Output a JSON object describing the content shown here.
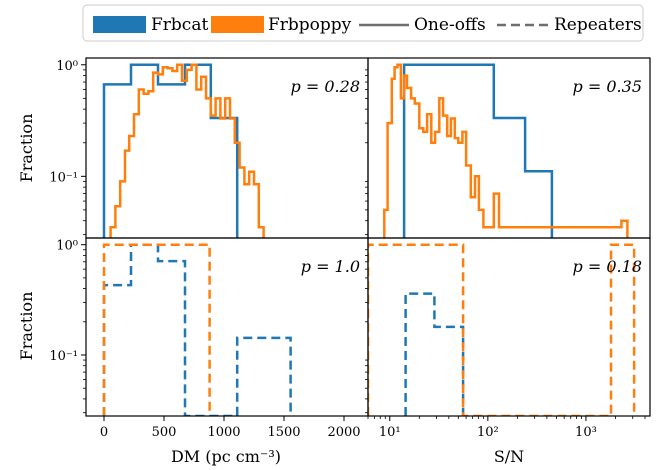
{
  "legend": {
    "entries": [
      {
        "label": "Frbcat",
        "kind": "patch",
        "color": "#1f77b4"
      },
      {
        "label": "Frbpoppy",
        "kind": "patch",
        "color": "#ff7f0e"
      },
      {
        "label": "One-offs",
        "kind": "solid-line",
        "color": "#6e6e6e"
      },
      {
        "label": "Repeaters",
        "kind": "dashed-line",
        "color": "#6e6e6e"
      }
    ]
  },
  "axes_labels": {
    "ylabel": "Fraction",
    "xlabel_dm": "DM (pc cm⁻³)",
    "xlabel_sn": "S/N"
  },
  "colors": {
    "frbcat": "#1f77b4",
    "frbpoppy": "#ff7f0e"
  },
  "chart_data": [
    {
      "type": "area",
      "panel": "top-left",
      "annotation": "p = 0.28",
      "xscale": "linear",
      "yscale": "log",
      "xlim": [
        -150,
        2200
      ],
      "ylim": [
        0.028,
        1.15
      ],
      "ylabel": "Fraction",
      "xticks": [
        0,
        500,
        1000,
        1500,
        2000
      ],
      "yticks": [
        {
          "v": 1,
          "t": "10⁰"
        },
        {
          "v": 0.1,
          "t": "10⁻¹"
        }
      ],
      "series": [
        {
          "name": "Frbcat",
          "style": "solid",
          "color": "#1f77b4",
          "steps": [
            [
              0,
              0.667
            ],
            [
              225,
              1.0
            ],
            [
              450,
              0.667
            ],
            [
              675,
              1.0
            ],
            [
              890,
              0.333
            ],
            [
              1110,
              0.01
            ]
          ],
          "end": 1110
        },
        {
          "name": "Frbpoppy",
          "style": "solid",
          "color": "#ff7f0e",
          "steps": [
            [
              55,
              0.035
            ],
            [
              95,
              0.054
            ],
            [
              135,
              0.09
            ],
            [
              175,
              0.17
            ],
            [
              210,
              0.23
            ],
            [
              250,
              0.36
            ],
            [
              290,
              0.6
            ],
            [
              330,
              0.55
            ],
            [
              370,
              0.58
            ],
            [
              410,
              0.85
            ],
            [
              450,
              0.82
            ],
            [
              490,
              0.95
            ],
            [
              530,
              0.93
            ],
            [
              570,
              0.88
            ],
            [
              610,
              1.0
            ],
            [
              650,
              0.72
            ],
            [
              690,
              0.9
            ],
            [
              730,
              1.0
            ],
            [
              770,
              0.6
            ],
            [
              810,
              0.78
            ],
            [
              850,
              0.5
            ],
            [
              890,
              0.35
            ],
            [
              930,
              0.5
            ],
            [
              970,
              0.33
            ],
            [
              1010,
              0.5
            ],
            [
              1050,
              0.33
            ],
            [
              1090,
              0.2
            ],
            [
              1130,
              0.12
            ],
            [
              1170,
              0.085
            ],
            [
              1210,
              0.11
            ],
            [
              1250,
              0.085
            ],
            [
              1290,
              0.035
            ]
          ],
          "end": 1330
        }
      ]
    },
    {
      "type": "area",
      "panel": "top-right",
      "annotation": "p = 0.35",
      "xscale": "log",
      "yscale": "log",
      "xlim": [
        6,
        4500
      ],
      "ylim": [
        0.028,
        1.15
      ],
      "xticks": [
        {
          "v": 10,
          "t": "10¹"
        },
        {
          "v": 100,
          "t": "10²"
        },
        {
          "v": 1000,
          "t": "10³"
        }
      ],
      "yticks": [],
      "series": [
        {
          "name": "Frbcat",
          "style": "solid",
          "color": "#1f77b4",
          "steps": [
            [
              14,
              1.0
            ],
            [
              115,
              0.333
            ],
            [
              240,
              0.111
            ],
            [
              450,
              0.01
            ]
          ],
          "end": 450
        },
        {
          "name": "Frbpoppy",
          "style": "solid",
          "color": "#ff7f0e",
          "steps": [
            [
              8.8,
              0.05
            ],
            [
              9.5,
              0.3
            ],
            [
              10.5,
              0.75
            ],
            [
              11.2,
              0.95
            ],
            [
              12,
              1.0
            ],
            [
              13,
              0.5
            ],
            [
              14,
              0.8
            ],
            [
              15,
              0.62
            ],
            [
              16.5,
              0.5
            ],
            [
              18,
              0.45
            ],
            [
              20,
              0.27
            ],
            [
              22,
              0.25
            ],
            [
              24,
              0.36
            ],
            [
              26.5,
              0.2
            ],
            [
              29,
              0.25
            ],
            [
              32,
              0.5
            ],
            [
              35,
              0.35
            ],
            [
              38.5,
              0.23
            ],
            [
              42,
              0.33
            ],
            [
              46,
              0.22
            ],
            [
              50,
              0.2
            ],
            [
              55,
              0.25
            ],
            [
              60,
              0.125
            ],
            [
              67,
              0.065
            ],
            [
              74,
              0.1
            ],
            [
              81,
              0.05
            ],
            [
              90,
              0.035
            ],
            [
              115,
              0.07
            ],
            [
              130,
              0.035
            ],
            [
              2300,
              0.04
            ]
          ],
          "end": 2650
        }
      ]
    },
    {
      "type": "area",
      "panel": "bottom-left",
      "annotation": "p = 1.0",
      "xscale": "linear",
      "yscale": "log",
      "xlim": [
        -150,
        2200
      ],
      "ylim": [
        0.028,
        1.15
      ],
      "ylabel": "Fraction",
      "xlabel": "DM (pc cm⁻³)",
      "xticks": [
        0,
        500,
        1000,
        1500,
        2000
      ],
      "yticks": [
        {
          "v": 1,
          "t": "10⁰"
        },
        {
          "v": 0.1,
          "t": "10⁻¹"
        }
      ],
      "series": [
        {
          "name": "Frbcat",
          "style": "dashed",
          "color": "#1f77b4",
          "steps": [
            [
              0,
              0.43
            ],
            [
              225,
              1.0
            ],
            [
              450,
              0.71
            ],
            [
              675,
              0.01
            ],
            [
              1110,
              0.143
            ]
          ],
          "end": 1555
        },
        {
          "name": "Frbpoppy",
          "style": "dashed",
          "color": "#ff7f0e",
          "steps": [
            [
              0,
              1.0
            ]
          ],
          "end": 880
        }
      ]
    },
    {
      "type": "area",
      "panel": "bottom-right",
      "annotation": "p = 0.18",
      "xscale": "log",
      "yscale": "log",
      "xlim": [
        6,
        4500
      ],
      "ylim": [
        0.028,
        1.15
      ],
      "xlabel": "S/N",
      "xticks": [
        {
          "v": 10,
          "t": "10¹"
        },
        {
          "v": 100,
          "t": "10²"
        },
        {
          "v": 1000,
          "t": "10³"
        }
      ],
      "yticks": [],
      "series": [
        {
          "name": "Frbcat",
          "style": "dashed",
          "color": "#1f77b4",
          "steps": [
            [
              14.5,
              0.36
            ],
            [
              28.5,
              0.18
            ]
          ],
          "end": 56
        },
        {
          "name": "Frbpoppy",
          "style": "dashed",
          "color": "#ff7f0e",
          "steps": [
            [
              6,
              1.0
            ],
            [
              56,
              0.01
            ],
            [
              1800,
              1.0
            ]
          ],
          "end": 3100
        }
      ]
    }
  ]
}
